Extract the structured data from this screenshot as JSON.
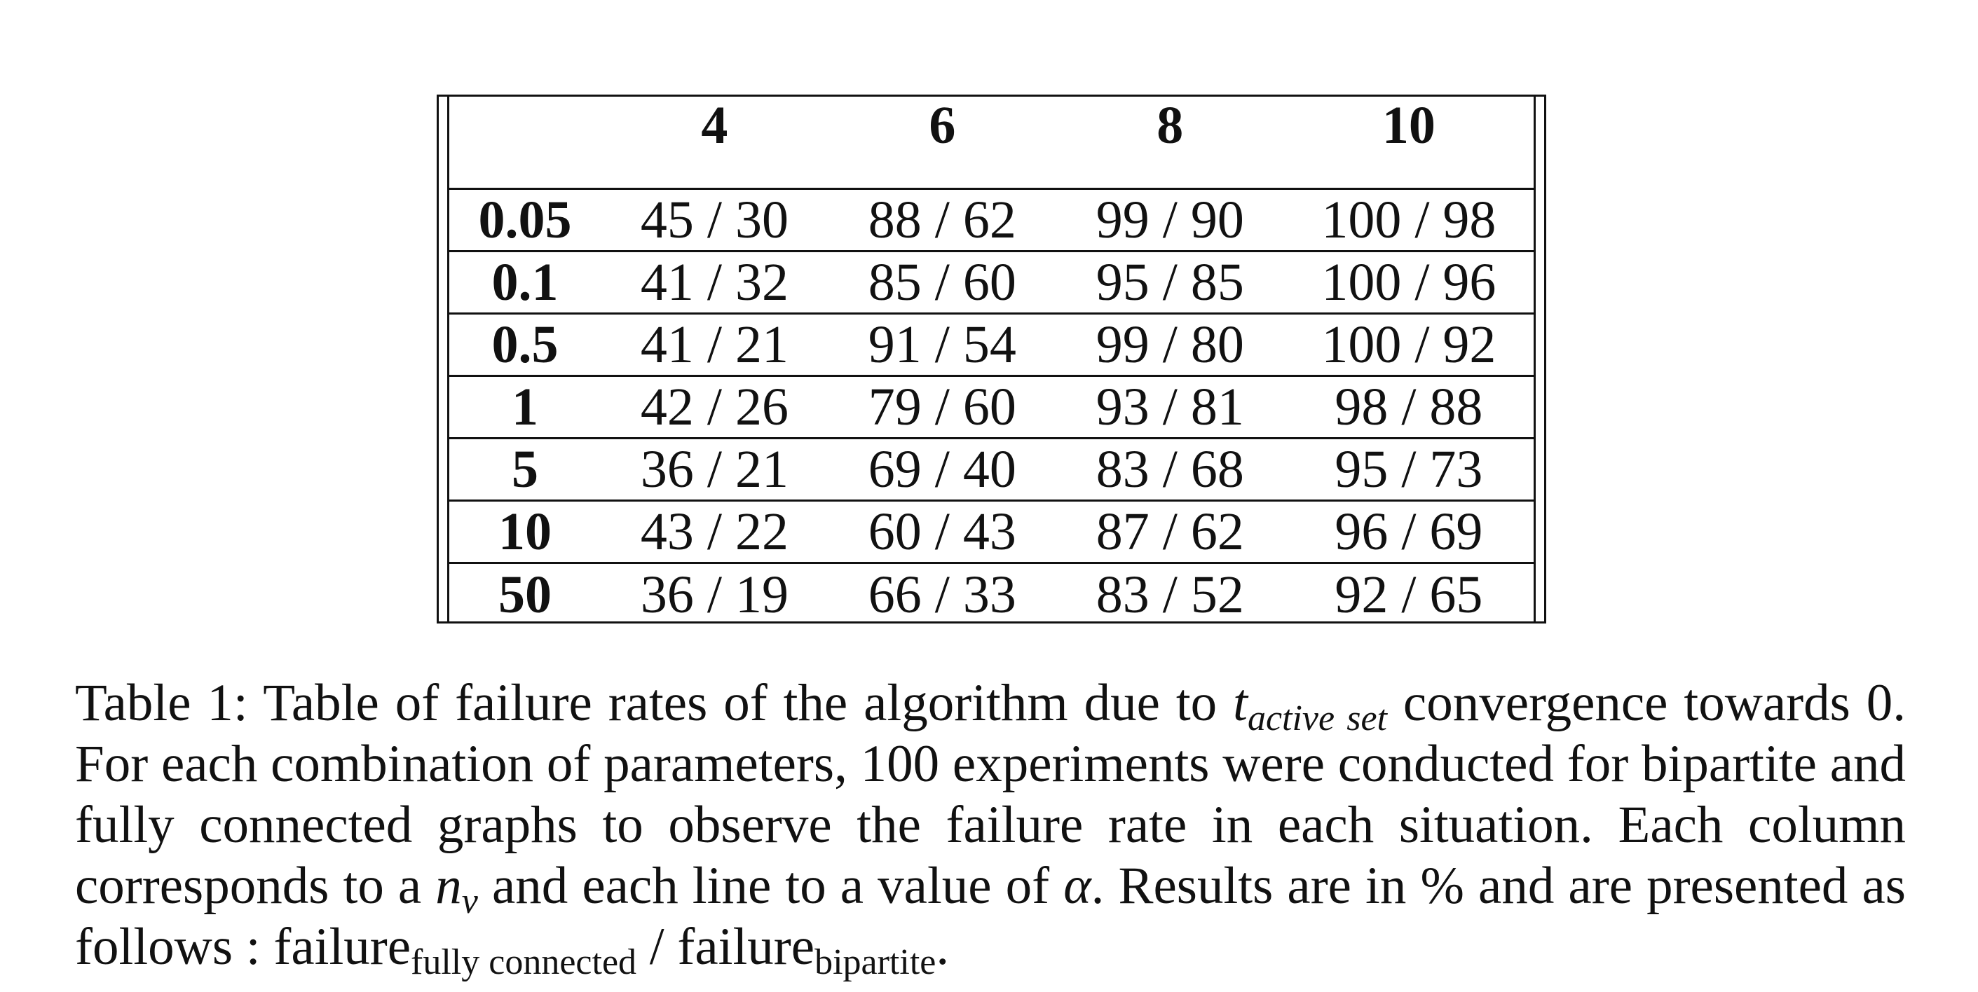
{
  "table": {
    "column_headers": [
      "4",
      "6",
      "8",
      "10"
    ],
    "rows": [
      {
        "label": "0.05",
        "cells": [
          "45 / 30",
          "88 / 62",
          "99 / 90",
          "100 / 98"
        ]
      },
      {
        "label": "0.1",
        "cells": [
          "41 / 32",
          "85 / 60",
          "95 / 85",
          "100 / 96"
        ]
      },
      {
        "label": "0.5",
        "cells": [
          "41 / 21",
          "91 / 54",
          "99 / 80",
          "100 / 92"
        ]
      },
      {
        "label": "1",
        "cells": [
          "42 / 26",
          "79 / 60",
          "93 / 81",
          "98 / 88"
        ]
      },
      {
        "label": "5",
        "cells": [
          "36 / 21",
          "69 / 40",
          "83 / 68",
          "95 / 73"
        ]
      },
      {
        "label": "10",
        "cells": [
          "43 / 22",
          "60 / 43",
          "87 / 62",
          "96 / 69"
        ]
      },
      {
        "label": "50",
        "cells": [
          "36 / 19",
          "66 / 33",
          "83 / 52",
          "92 / 65"
        ]
      }
    ]
  },
  "caption": {
    "part1": "Table 1: Table of failure rates of the algorithm due to ",
    "t_symbol": "t",
    "t_subscript": "active set",
    "part2": " convergence to­wards 0. For each combination of parameters, 100 experiments were conducted for bipartite and fully connected graphs to observe the failure rate in each situation. Each column corresponds to a ",
    "n_symbol": "n",
    "n_subscript": "v",
    "part3": " and each line to a value of ",
    "alpha_symbol": "α",
    "part4": ". Results are in % and are presented as follows : failure",
    "fully_connected_subscript": "fully connected",
    "slash": " / failure",
    "bipartite_subscript": "bipartite",
    "end": "."
  }
}
